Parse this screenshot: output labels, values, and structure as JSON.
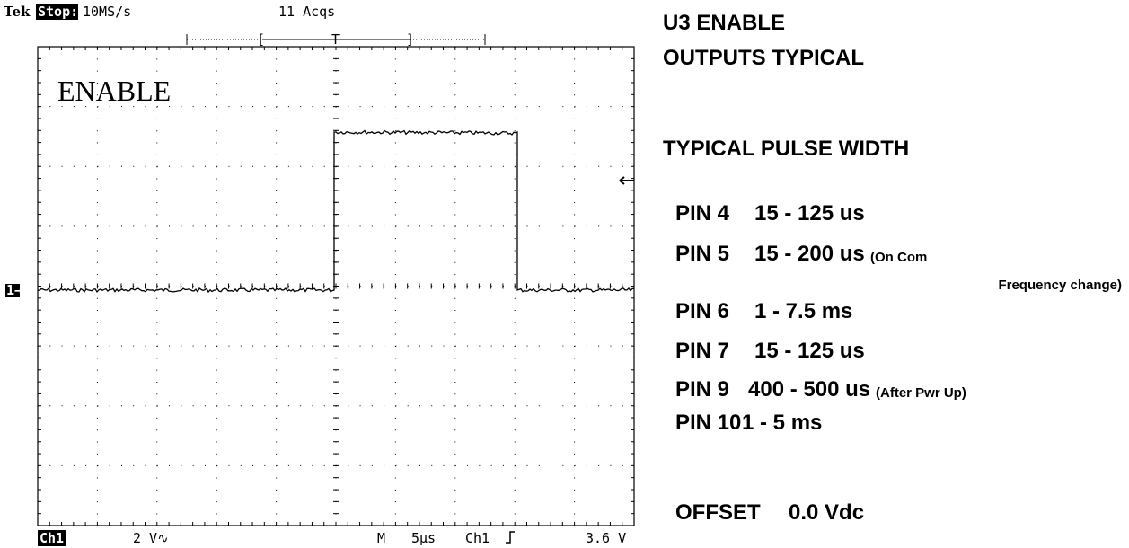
{
  "header": {
    "brand": "Tek",
    "status": "Stop:",
    "rate": "10MS/s",
    "acquisitions": "11 Acqs",
    "trigger_window": [
      "[",
      "T",
      "]"
    ]
  },
  "channel_marker": "1→",
  "screen_label": "ENABLE",
  "footer": {
    "channel": "Ch1",
    "scale": "2 V∿",
    "timebase_prefix": "M",
    "timebase": "5µs",
    "trigger_source": "Ch1",
    "trigger_level": "3.6 V"
  },
  "notes": {
    "title": [
      "U3 ENABLE",
      "OUTPUTS TYPICAL"
    ],
    "heading": "TYPICAL PULSE WIDTH",
    "pins": [
      {
        "pin": "PIN 4",
        "range": "15 - 125 us"
      },
      {
        "pin": "PIN 5",
        "range": "15 - 200 us",
        "note": "(On Com",
        "note_2": "Frequency change)"
      },
      {
        "pin": "PIN 6",
        "range": "1 - 7.5 ms"
      },
      {
        "pin": "PIN 7",
        "range": "15 - 125 us"
      },
      {
        "pin": "PIN 9",
        "range": "400 - 500 us",
        "note": "(After Pwr Up)"
      },
      {
        "pin": "PIN 10",
        "range": "1 - 5 ms"
      }
    ],
    "offset": {
      "label": "OFFSET",
      "value": "0.0 Vdc"
    }
  }
}
